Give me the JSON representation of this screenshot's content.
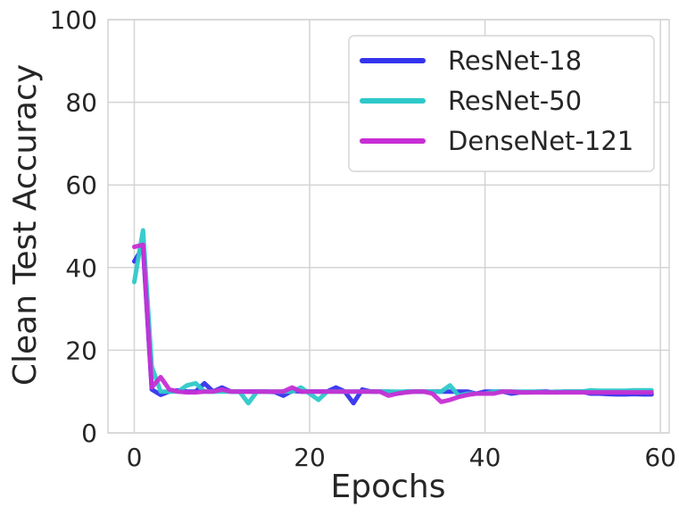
{
  "chart_data": {
    "type": "line",
    "xlabel": "Epochs",
    "ylabel": "Clean Test Accuracy",
    "xlim": [
      -3,
      61
    ],
    "ylim": [
      0,
      100
    ],
    "xticks": [
      0,
      20,
      40,
      60
    ],
    "yticks": [
      0,
      20,
      40,
      60,
      80,
      100
    ],
    "grid": true,
    "legend_position": "top-right",
    "series": [
      {
        "name": "ResNet-18",
        "color": "#3333ee",
        "x": [
          0,
          1,
          2,
          3,
          4,
          5,
          6,
          7,
          8,
          9,
          10,
          11,
          12,
          13,
          14,
          15,
          16,
          17,
          18,
          19,
          20,
          21,
          22,
          23,
          24,
          25,
          26,
          27,
          28,
          29,
          30,
          31,
          32,
          33,
          34,
          35,
          36,
          37,
          38,
          39,
          40,
          41,
          42,
          43,
          44,
          45,
          46,
          47,
          48,
          49,
          50,
          51,
          52,
          53,
          54,
          55,
          56,
          57,
          58,
          59
        ],
        "values": [
          41.5,
          45,
          10.5,
          9.2,
          10,
          10.3,
          10,
          10,
          12,
          10,
          11,
          10,
          10,
          10,
          10,
          10,
          9.9,
          9,
          10.2,
          10,
          10,
          10,
          10,
          11,
          10,
          7.2,
          10.5,
          10,
          10,
          10,
          9.5,
          10,
          10,
          10,
          10,
          10,
          10,
          10,
          10,
          9.5,
          10,
          10,
          10,
          9.5,
          9.8,
          9.8,
          10,
          10,
          9.8,
          10,
          10,
          10,
          9.5,
          9.5,
          9.4,
          9.3,
          9.3,
          9.4,
          9.3,
          9.3
        ]
      },
      {
        "name": "ResNet-50",
        "color": "#2ec9c9",
        "x": [
          0,
          1,
          2,
          3,
          4,
          5,
          6,
          7,
          8,
          9,
          10,
          11,
          12,
          13,
          14,
          15,
          16,
          17,
          18,
          19,
          20,
          21,
          22,
          23,
          24,
          25,
          26,
          27,
          28,
          29,
          30,
          31,
          32,
          33,
          34,
          35,
          36,
          37,
          38,
          39,
          40,
          41,
          42,
          43,
          44,
          45,
          46,
          47,
          48,
          49,
          50,
          51,
          52,
          53,
          54,
          55,
          56,
          57,
          58,
          59
        ],
        "values": [
          36.5,
          49,
          16,
          10,
          10,
          10,
          11.5,
          12,
          10,
          10,
          10,
          10,
          10,
          7.2,
          10,
          10,
          10,
          10,
          10,
          11,
          9.5,
          8,
          10,
          10,
          10,
          10,
          10,
          10,
          10,
          10,
          10,
          10,
          10,
          10,
          10,
          10,
          11.5,
          9,
          9.5,
          9.5,
          9.5,
          10,
          10,
          10,
          10,
          10,
          10,
          9.8,
          10,
          10,
          10,
          10,
          10.3,
          10.2,
          10.2,
          10.2,
          10.2,
          10.3,
          10.3,
          10.3
        ]
      },
      {
        "name": "DenseNet-121",
        "color": "#c72ed4",
        "x": [
          0,
          1,
          2,
          3,
          4,
          5,
          6,
          7,
          8,
          9,
          10,
          11,
          12,
          13,
          14,
          15,
          16,
          17,
          18,
          19,
          20,
          21,
          22,
          23,
          24,
          25,
          26,
          27,
          28,
          29,
          30,
          31,
          32,
          33,
          34,
          35,
          36,
          37,
          38,
          39,
          40,
          41,
          42,
          43,
          44,
          45,
          46,
          47,
          48,
          49,
          50,
          51,
          52,
          53,
          54,
          55,
          56,
          57,
          58,
          59
        ],
        "values": [
          45,
          45.5,
          11,
          13.5,
          10.5,
          10,
          9.8,
          9.8,
          10,
          10,
          10.5,
          10,
          10,
          10,
          10,
          10,
          10,
          10,
          11,
          10,
          10,
          10,
          10,
          10,
          10,
          10,
          10,
          10,
          10,
          9,
          9.5,
          9.8,
          10,
          10,
          9.5,
          7.5,
          8,
          8.7,
          9.2,
          9.5,
          9.5,
          9.5,
          10,
          10,
          9.8,
          9.8,
          9.8,
          9.8,
          9.8,
          9.8,
          9.8,
          9.8,
          9.8,
          9.8,
          9.8,
          9.8,
          9.8,
          9.8,
          9.8,
          9.8
        ]
      }
    ]
  }
}
